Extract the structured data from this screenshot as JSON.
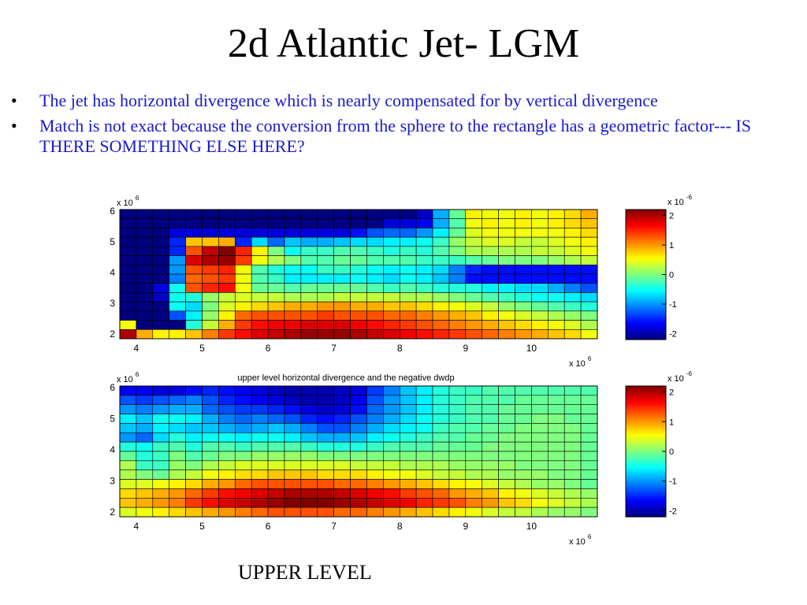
{
  "slide": {
    "title": "2d Atlantic Jet- LGM",
    "bullets": [
      "The jet has horizontal divergence which is nearly compensated for by vertical divergence",
      "Match is not exact because the conversion from the sphere to the rectangle has a geometric factor--- IS THERE SOMETHING ELSE HERE?"
    ],
    "footer": "UPPER LEVEL"
  },
  "chart_data": [
    {
      "type": "heatmap",
      "title": "",
      "x_ticks": [
        4,
        5,
        6,
        7,
        8,
        9,
        10
      ],
      "x_multiplier": "x 10^6",
      "y_ticks": [
        2,
        3,
        4,
        5,
        6
      ],
      "y_multiplier": "x 10^6",
      "colorbar_ticks": [
        2,
        1,
        0,
        -1,
        -2
      ],
      "colorbar_multiplier": "x 10^-6",
      "clim": [
        -2.2,
        2.2
      ],
      "rows_top_to_bottom": [
        [
          -2.2,
          -2.2,
          -2.2,
          -2.2,
          -2.2,
          -2.2,
          -2.2,
          -2.2,
          -2.2,
          -2.2,
          -2.2,
          -2.2,
          -2.2,
          -2.2,
          -2.2,
          -2.2,
          -2.2,
          -2.2,
          -1.9,
          -0.9,
          -0.1,
          0.6,
          0.5,
          0.5,
          0.6,
          0.5,
          0.6,
          0.7,
          0.9
        ],
        [
          -2.2,
          -2.2,
          -2.2,
          -2.2,
          -2.2,
          -2.2,
          -2.2,
          -2.2,
          -2.2,
          -2.2,
          -2.2,
          -2.2,
          -2.2,
          -2.2,
          -2.2,
          -2.2,
          -1.8,
          -1.8,
          -1.7,
          -0.9,
          -0.2,
          0.5,
          0.6,
          0.5,
          0.6,
          0.5,
          0.6,
          0.7,
          0.8
        ],
        [
          -2.2,
          -2.2,
          -2.2,
          -1.8,
          -1.8,
          -1.8,
          -1.8,
          -1.8,
          -1.8,
          -1.8,
          -1.8,
          -1.8,
          -1.8,
          -1.8,
          -1.6,
          -1.3,
          -1.2,
          -1.2,
          -1.0,
          -0.6,
          -0.1,
          0.4,
          0.5,
          0.5,
          0.5,
          0.5,
          0.5,
          0.6,
          0.7
        ],
        [
          -2.2,
          -2.2,
          -2.2,
          -1.5,
          0.8,
          0.8,
          0.9,
          -1.5,
          -0.7,
          -1.2,
          -0.8,
          -0.9,
          -0.9,
          -0.8,
          -0.7,
          -0.7,
          -0.6,
          -0.6,
          -0.5,
          -0.3,
          0.1,
          0.3,
          0.4,
          0.4,
          0.3,
          0.3,
          0.4,
          0.5,
          0.6
        ],
        [
          -2.2,
          -2.2,
          -2.2,
          -1.5,
          1.3,
          1.9,
          2.2,
          1.5,
          0.6,
          0.0,
          -0.5,
          -0.3,
          -0.3,
          -0.2,
          -0.2,
          -0.3,
          -0.4,
          -0.3,
          -0.4,
          -0.2,
          0.0,
          0.2,
          0.2,
          0.2,
          0.2,
          0.3,
          0.3,
          0.4,
          0.5
        ],
        [
          -2.2,
          -2.2,
          -2.2,
          -1.0,
          1.8,
          2.0,
          2.1,
          1.4,
          0.5,
          0.2,
          0.0,
          -0.2,
          -0.2,
          -0.1,
          -0.1,
          -0.2,
          -0.2,
          -0.2,
          -0.3,
          -0.3,
          -0.3,
          -0.2,
          -0.1,
          0.0,
          0.0,
          0.0,
          0.1,
          0.2,
          0.3
        ],
        [
          -2.2,
          -2.2,
          -2.2,
          -1.0,
          1.3,
          1.4,
          1.5,
          0.5,
          -0.2,
          -0.4,
          -0.5,
          -0.5,
          -0.3,
          -0.3,
          -0.4,
          -0.5,
          -0.6,
          -0.5,
          -0.6,
          -0.7,
          -1.1,
          -1.5,
          -1.6,
          -1.6,
          -1.6,
          -1.6,
          -1.6,
          -1.6,
          -1.6
        ],
        [
          -2.2,
          -2.2,
          -2.2,
          -1.1,
          1.2,
          1.3,
          1.4,
          0.5,
          -0.2,
          -0.3,
          -0.6,
          -0.6,
          -0.6,
          -0.6,
          -0.5,
          -0.6,
          -0.7,
          -0.5,
          -0.6,
          -0.8,
          -1.1,
          -1.6,
          -1.6,
          -1.6,
          -1.6,
          -1.6,
          -1.6,
          -1.6,
          -1.6
        ],
        [
          -2.2,
          -2.2,
          -1.8,
          -0.5,
          1.3,
          1.5,
          1.6,
          0.5,
          -0.1,
          -0.1,
          -0.2,
          -0.1,
          -0.1,
          -0.1,
          -0.1,
          -0.2,
          -0.3,
          -0.2,
          -0.3,
          -0.4,
          -0.4,
          -0.4,
          -0.6,
          -0.6,
          -0.7,
          -0.7,
          -0.9,
          -1.1,
          -1.3
        ],
        [
          -2.2,
          -2.2,
          -1.9,
          -0.5,
          -0.4,
          0.1,
          0.3,
          0.4,
          0.3,
          0.3,
          0.2,
          0.2,
          0.2,
          0.3,
          0.3,
          0.3,
          0.3,
          0.2,
          0.2,
          0.1,
          0.0,
          -0.1,
          -0.2,
          -0.3,
          -0.4,
          -0.5,
          -0.5,
          -0.6,
          -0.7
        ],
        [
          -2.2,
          -2.2,
          -2.2,
          -0.5,
          -0.7,
          0.0,
          0.4,
          0.6,
          0.7,
          0.8,
          0.9,
          0.9,
          1.0,
          1.0,
          0.9,
          0.9,
          0.8,
          0.8,
          0.7,
          0.6,
          0.5,
          0.4,
          0.3,
          0.1,
          0.0,
          -0.1,
          -0.2,
          -0.3,
          -0.4
        ],
        [
          -2.2,
          -2.2,
          -2.2,
          -1.3,
          -0.6,
          0.1,
          0.6,
          1.2,
          1.3,
          1.3,
          1.3,
          1.3,
          1.4,
          1.3,
          1.3,
          1.3,
          1.2,
          1.2,
          1.1,
          1.0,
          0.9,
          0.8,
          0.6,
          0.5,
          0.4,
          0.3,
          0.2,
          0.1,
          0.0
        ],
        [
          0.5,
          -2.2,
          -2.2,
          -2.2,
          -0.4,
          0.3,
          0.9,
          1.4,
          1.6,
          1.7,
          1.7,
          1.8,
          1.8,
          1.8,
          1.7,
          1.6,
          1.5,
          1.4,
          1.3,
          1.2,
          1.1,
          1.0,
          0.9,
          0.8,
          0.7,
          0.6,
          0.5,
          0.4,
          0.2
        ],
        [
          2.0,
          0.9,
          0.6,
          0.6,
          0.8,
          1.1,
          1.4,
          1.6,
          1.8,
          1.9,
          2.0,
          2.1,
          2.1,
          2.1,
          2.0,
          1.9,
          1.8,
          1.7,
          1.6,
          1.5,
          1.4,
          1.3,
          1.2,
          1.1,
          1.0,
          0.9,
          0.8,
          0.7,
          0.5
        ]
      ]
    },
    {
      "type": "heatmap",
      "title": "upper level horizontal divergence and the negative dwdp",
      "x_ticks": [
        4,
        5,
        6,
        7,
        8,
        9,
        10
      ],
      "x_multiplier": "x 10^6",
      "y_ticks": [
        2,
        3,
        4,
        5,
        6
      ],
      "y_multiplier": "x 10^6",
      "colorbar_ticks": [
        2,
        1,
        0,
        -1,
        -2
      ],
      "colorbar_multiplier": "x 10^-6",
      "clim": [
        -2.2,
        2.2
      ],
      "rows_top_to_bottom": [
        [
          -1.7,
          -1.7,
          -1.8,
          -1.8,
          -1.6,
          -1.5,
          -1.6,
          -1.7,
          -1.8,
          -1.9,
          -2.0,
          -2.0,
          -2.0,
          -1.9,
          -1.8,
          -1.4,
          -1.1,
          -0.8,
          -0.6,
          -0.4,
          -0.3,
          -0.3,
          -0.2,
          -0.2,
          -0.2,
          -0.2,
          -0.2,
          -0.2,
          -0.2
        ],
        [
          -1.3,
          -1.4,
          -1.3,
          -1.2,
          -1.1,
          -1.3,
          -1.5,
          -1.6,
          -1.7,
          -1.8,
          -1.9,
          -2.0,
          -2.0,
          -1.9,
          -1.7,
          -1.3,
          -1.0,
          -0.8,
          -0.6,
          -0.4,
          -0.3,
          -0.2,
          -0.2,
          -0.2,
          -0.1,
          -0.1,
          -0.1,
          -0.1,
          -0.1
        ],
        [
          -1.0,
          -1.1,
          -1.0,
          -0.9,
          -0.9,
          -1.2,
          -1.3,
          -1.4,
          -1.4,
          -1.5,
          -1.6,
          -1.8,
          -1.9,
          -1.8,
          -1.6,
          -1.2,
          -1.0,
          -0.8,
          -0.6,
          -0.4,
          -0.3,
          -0.2,
          -0.2,
          -0.1,
          -0.1,
          -0.1,
          -0.1,
          -0.1,
          -0.1
        ],
        [
          -0.6,
          -0.8,
          -0.5,
          -0.5,
          -0.6,
          -0.9,
          -1.1,
          -1.2,
          -1.1,
          -1.2,
          -1.3,
          -1.5,
          -1.6,
          -1.5,
          -1.3,
          -1.1,
          -0.9,
          -0.7,
          -0.5,
          -0.4,
          -0.3,
          -0.2,
          -0.2,
          -0.1,
          -0.1,
          0.0,
          0.0,
          -0.1,
          -0.1
        ],
        [
          -0.8,
          -0.9,
          -0.6,
          -0.7,
          -0.8,
          -0.8,
          -0.9,
          -1.0,
          -0.9,
          -0.8,
          -0.9,
          -1.1,
          -1.3,
          -1.3,
          -1.1,
          -0.9,
          -0.7,
          -0.6,
          -0.5,
          -0.3,
          -0.2,
          -0.2,
          -0.1,
          -0.1,
          0.0,
          0.0,
          0.0,
          0.0,
          -0.1
        ],
        [
          -1.0,
          -1.2,
          -0.7,
          -0.4,
          -0.6,
          -0.5,
          -0.5,
          -0.6,
          -0.5,
          -0.5,
          -0.6,
          -0.8,
          -0.9,
          -0.9,
          -0.8,
          -0.6,
          -0.5,
          -0.4,
          -0.3,
          -0.2,
          -0.2,
          -0.1,
          -0.1,
          0.0,
          0.0,
          0.0,
          0.0,
          0.0,
          -0.1
        ],
        [
          -0.4,
          -0.5,
          -0.3,
          -0.2,
          -0.4,
          -0.2,
          -0.2,
          -0.3,
          -0.2,
          -0.2,
          -0.2,
          -0.3,
          -0.4,
          -0.4,
          -0.4,
          -0.3,
          -0.2,
          -0.2,
          -0.2,
          -0.1,
          -0.1,
          -0.1,
          0.0,
          0.0,
          0.0,
          0.0,
          0.0,
          0.0,
          -0.1
        ],
        [
          -0.1,
          -0.4,
          -0.3,
          0.0,
          -0.2,
          -0.1,
          0.0,
          0.0,
          0.1,
          0.1,
          0.1,
          0.1,
          0.0,
          0.0,
          0.0,
          0.0,
          0.0,
          0.0,
          0.0,
          0.0,
          0.0,
          0.0,
          0.0,
          0.0,
          0.0,
          0.0,
          0.0,
          0.0,
          -0.1
        ],
        [
          0.2,
          -0.3,
          -0.3,
          0.1,
          0.0,
          0.2,
          0.3,
          0.4,
          0.4,
          0.4,
          0.4,
          0.4,
          0.4,
          0.4,
          0.3,
          0.3,
          0.3,
          0.2,
          0.2,
          0.2,
          0.1,
          0.1,
          0.1,
          0.1,
          0.0,
          0.0,
          0.0,
          0.0,
          -0.1
        ],
        [
          0.2,
          0.0,
          -0.1,
          0.2,
          0.3,
          0.5,
          0.6,
          0.7,
          0.7,
          0.8,
          0.8,
          0.8,
          0.7,
          0.7,
          0.7,
          0.6,
          0.5,
          0.5,
          0.4,
          0.3,
          0.3,
          0.2,
          0.2,
          0.1,
          0.1,
          0.1,
          0.0,
          0.0,
          -0.1
        ],
        [
          0.4,
          0.4,
          0.5,
          0.6,
          0.7,
          0.9,
          1.0,
          1.2,
          1.3,
          1.3,
          1.3,
          1.3,
          1.3,
          1.2,
          1.2,
          1.1,
          1.0,
          0.9,
          0.8,
          0.7,
          0.6,
          0.5,
          0.4,
          0.3,
          0.2,
          0.1,
          0.1,
          0.0,
          -0.1
        ],
        [
          0.7,
          0.8,
          0.9,
          1.0,
          1.2,
          1.4,
          1.6,
          1.7,
          1.8,
          1.9,
          2.0,
          2.0,
          2.0,
          1.9,
          1.8,
          1.7,
          1.6,
          1.4,
          1.3,
          1.2,
          1.0,
          0.9,
          0.8,
          0.6,
          0.5,
          0.4,
          0.3,
          0.2,
          0.1
        ],
        [
          0.8,
          0.9,
          1.0,
          1.1,
          1.4,
          1.6,
          1.8,
          1.9,
          2.0,
          2.1,
          2.2,
          2.2,
          2.2,
          2.1,
          2.0,
          1.9,
          1.8,
          1.7,
          1.5,
          1.4,
          1.3,
          1.1,
          1.0,
          0.8,
          0.7,
          0.5,
          0.4,
          0.3,
          0.2
        ],
        [
          0.4,
          0.5,
          0.6,
          0.7,
          0.8,
          0.9,
          1.0,
          1.1,
          1.2,
          1.3,
          1.3,
          1.3,
          1.3,
          1.2,
          1.2,
          1.1,
          1.0,
          0.9,
          0.8,
          0.7,
          0.6,
          0.5,
          0.4,
          0.3,
          0.3,
          0.2,
          0.1,
          0.1,
          0.0
        ]
      ]
    }
  ]
}
